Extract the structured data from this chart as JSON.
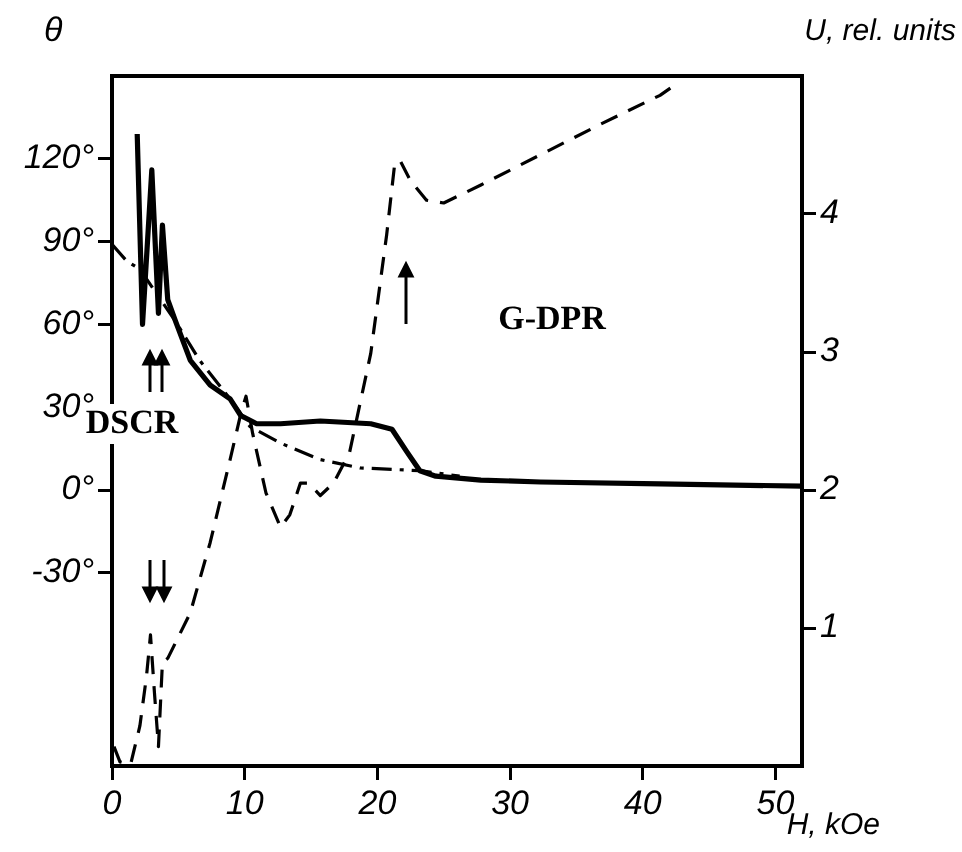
{
  "chart_data": {
    "type": "line",
    "ylabel": "θ",
    "y2label": "U, rel. units",
    "xlabel": "H, kOe",
    "xlim": [
      0,
      52
    ],
    "xticks": [
      0,
      10,
      20,
      30,
      40,
      50
    ],
    "ylim": [
      -100,
      150
    ],
    "yticks": [
      {
        "value": -30,
        "label": "-30°"
      },
      {
        "value": 0,
        "label": "0°"
      },
      {
        "value": 30,
        "label": "30°"
      },
      {
        "value": 60,
        "label": "60°"
      },
      {
        "value": 90,
        "label": "90°"
      },
      {
        "value": 120,
        "label": "120°"
      }
    ],
    "y2lim": [
      0,
      5
    ],
    "y2ticks": [
      1,
      2,
      3,
      4
    ],
    "grid": false,
    "legend": false,
    "marker": "none",
    "annotations": [
      "DSCR",
      "G-DPR"
    ],
    "series": [
      {
        "color": "#000000",
        "line_style": "solid",
        "x": [
          1.9,
          2.3,
          3.0,
          3.5,
          3.8,
          4.2,
          4.8,
          5.9,
          7.4,
          8.9,
          9.7,
          10.9,
          12.7,
          15.7,
          19.5,
          21.1,
          22.2,
          23.2,
          24.4,
          27.8,
          32.3,
          41.3,
          52
        ],
        "values": [
          129,
          60,
          116,
          64,
          96,
          69,
          61,
          47,
          38,
          33,
          27,
          24,
          24,
          25,
          24,
          22,
          14,
          7,
          5,
          3.6,
          2.9,
          2.2,
          1.4
        ]
      },
      {
        "color": "#000000",
        "line_style": "dotted",
        "x": [
          0,
          1.1,
          2.1,
          4.8,
          6.6,
          8.9,
          10.4,
          12.7,
          15.7,
          18.7,
          23.2,
          26.2
        ],
        "values": [
          89,
          83,
          80,
          61,
          47,
          33,
          23,
          17,
          11,
          8,
          7,
          5
        ]
      },
      {
        "color": "#000000",
        "line_style": "dashed",
        "axis": "y2",
        "x": [
          0.15,
          0.6,
          1.4,
          2.1,
          2.6,
          2.9,
          3.2,
          3.5,
          3.8,
          4.2,
          5.9,
          7.4,
          8.9,
          9.7,
          10.1,
          10.6,
          11.6,
          12.7,
          13.4,
          14.2,
          14.8,
          15.7,
          16.7,
          17.9,
          19.5,
          20.7,
          21.3,
          21.7,
          22.5,
          23.7,
          25.0,
          27.8,
          32.3,
          36.8,
          41.3,
          42.8
        ],
        "values": [
          0.14,
          0.03,
          0.01,
          0.29,
          0.65,
          0.95,
          0.53,
          0.14,
          0.75,
          0.78,
          1.11,
          1.62,
          2.22,
          2.55,
          2.68,
          2.41,
          1.98,
          1.73,
          1.82,
          2.05,
          2.05,
          1.96,
          2.05,
          2.27,
          2.99,
          3.85,
          4.36,
          4.39,
          4.24,
          4.1,
          4.08,
          4.21,
          4.43,
          4.65,
          4.86,
          4.96
        ]
      }
    ]
  }
}
